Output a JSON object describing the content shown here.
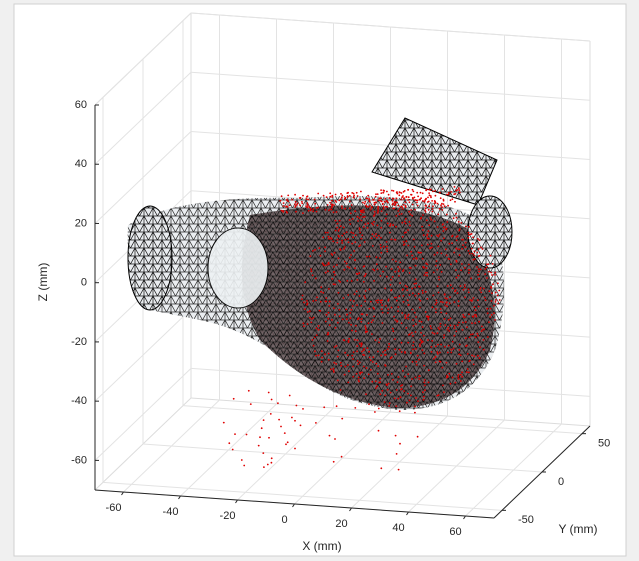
{
  "chart_data": {
    "type": "mesh3d",
    "xlabel": "X (mm)",
    "ylabel": "Y (mm)",
    "zlabel": "Z (mm)",
    "xlim": [
      -70,
      70
    ],
    "ylim": [
      -60,
      60
    ],
    "zlim": [
      -70,
      60
    ],
    "xticks": [
      -60,
      -40,
      -20,
      0,
      20,
      40,
      60
    ],
    "yticks": [
      -50,
      0,
      50
    ],
    "zticks": [
      -60,
      -40,
      -20,
      0,
      20,
      40,
      60
    ],
    "grid": true,
    "mesh_color": "#000000",
    "points_color": "#e00000"
  }
}
